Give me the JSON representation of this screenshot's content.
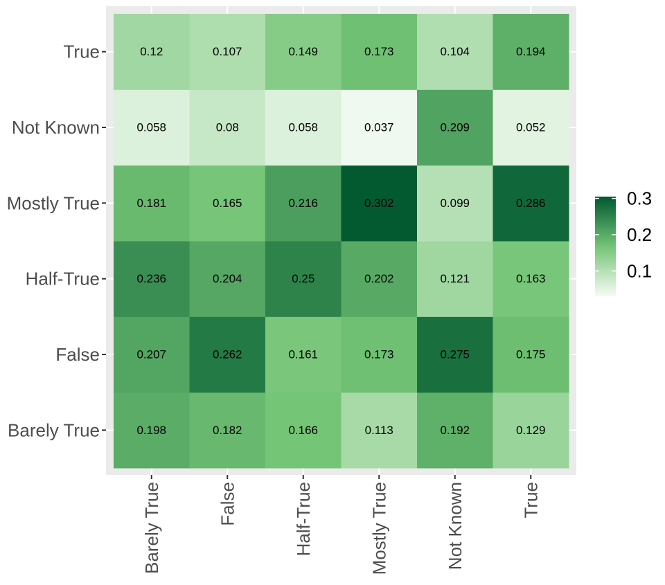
{
  "chart_data": {
    "type": "heatmap",
    "title": "",
    "xlabel": "",
    "ylabel": "",
    "x_categories": [
      "Barely True",
      "False",
      "Half-True",
      "Mostly True",
      "Not Known",
      "True"
    ],
    "y_categories": [
      "Barely True",
      "False",
      "Half-True",
      "Mostly True",
      "Not Known",
      "True"
    ],
    "values": [
      [
        0.198,
        0.182,
        0.166,
        0.113,
        0.192,
        0.129
      ],
      [
        0.207,
        0.262,
        0.161,
        0.173,
        0.275,
        0.175
      ],
      [
        0.236,
        0.204,
        0.25,
        0.202,
        0.121,
        0.163
      ],
      [
        0.181,
        0.165,
        0.216,
        0.302,
        0.099,
        0.286
      ],
      [
        0.058,
        0.08,
        0.058,
        0.037,
        0.209,
        0.052
      ],
      [
        0.12,
        0.107,
        0.149,
        0.173,
        0.104,
        0.194
      ]
    ],
    "value_labels": [
      [
        "0.198",
        "0.182",
        "0.166",
        "0.113",
        "0.192",
        "0.129"
      ],
      [
        "0.207",
        "0.262",
        "0.161",
        "0.173",
        "0.275",
        "0.175"
      ],
      [
        "0.236",
        "0.204",
        "0.25",
        "0.202",
        "0.121",
        "0.163"
      ],
      [
        "0.181",
        "0.165",
        "0.216",
        "0.302",
        "0.099",
        "0.286"
      ],
      [
        "0.058",
        "0.08",
        "0.058",
        "0.037",
        "0.209",
        "0.052"
      ],
      [
        "0.12",
        "0.107",
        "0.149",
        "0.173",
        "0.104",
        "0.194"
      ]
    ],
    "color_scale": {
      "low_color": "#f7fcf5",
      "mid_color": "#74c476",
      "high_color": "#00582f",
      "min": 0.03,
      "max": 0.305
    },
    "legend": {
      "position": "right",
      "ticks": [
        {
          "value": 0.1,
          "label": "0.1"
        },
        {
          "value": 0.2,
          "label": "0.2"
        },
        {
          "value": 0.3,
          "label": "0.3"
        }
      ]
    },
    "panel_background": "#ebebeb",
    "grid": true
  }
}
